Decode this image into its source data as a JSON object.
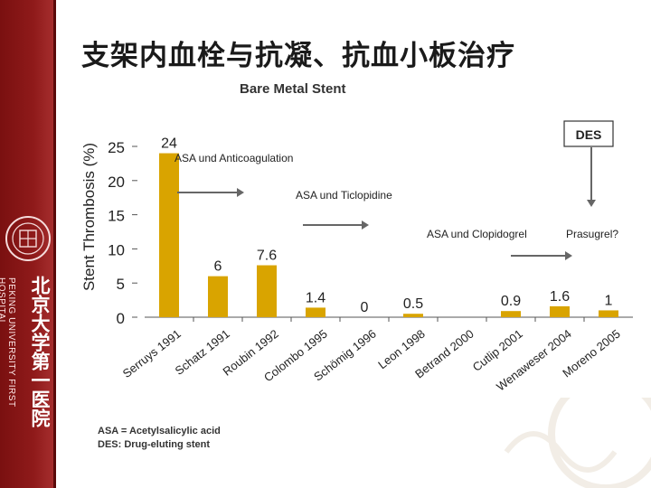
{
  "slide": {
    "title": "支架内血栓与抗凝、抗血小板治疗",
    "section_label": "Bare Metal Stent",
    "footnote_1": "ASA = Acetylsalicylic acid",
    "footnote_2": "DES: Drug-eluting stent",
    "sidebar_en": "PEKING UNIVERSITY FIRST HOSPITAL",
    "sidebar_cn": "北京大学第一医院"
  },
  "chart_data": {
    "type": "bar",
    "title": "",
    "xlabel": "",
    "ylabel": "Stent Thrombosis (%)",
    "ylim": [
      0,
      25
    ],
    "yticks": [
      "0",
      "5",
      "10",
      "15",
      "20",
      "25"
    ],
    "grid": false,
    "categories": [
      "Serruys 1991",
      "Schatz 1991",
      "Roubin 1992",
      "Colombo 1995",
      "Schömig 1996",
      "Leon 1998",
      "Betrand 2000",
      "Cutlip 2001",
      "Wenaweser 2004",
      "Moreno 2005"
    ],
    "values": [
      24,
      6,
      7.6,
      1.4,
      0,
      0.5,
      null,
      0.9,
      1.6,
      1
    ],
    "data_labels": [
      "24",
      "6",
      "7.6",
      "1.4",
      "0",
      "0.5",
      "",
      "0.9",
      "1.6",
      "1"
    ],
    "bar_color": "#d9a400",
    "annotations": {
      "anticoag": "ASA und Anticoagulation",
      "ticlopidine": "ASA und Ticlopidine",
      "clopidogrel": "ASA und Clopidogrel",
      "prasugrel": "Prasugrel?",
      "des_box": "DES"
    }
  }
}
